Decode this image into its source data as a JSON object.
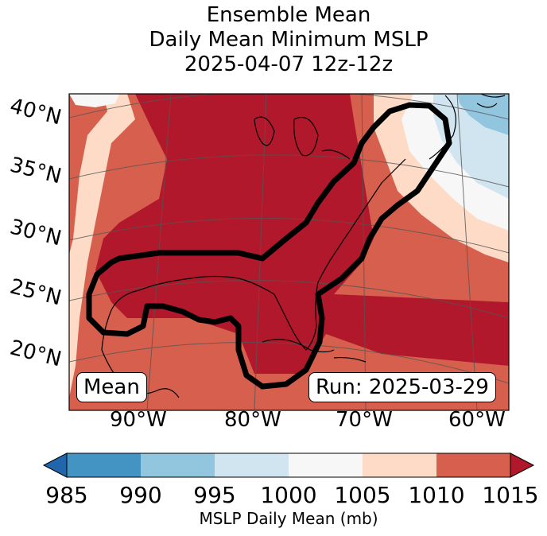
{
  "title": {
    "line1": "Ensemble Mean",
    "line2": "Daily Mean Minimum MSLP",
    "line3": "2025-04-07 12z-12z"
  },
  "map": {
    "lat_labels": [
      "40°N",
      "35°N",
      "30°N",
      "25°N",
      "20°N"
    ],
    "lon_labels": [
      "90°W",
      "80°W",
      "70°W",
      "60°W"
    ],
    "box_left": "Mean",
    "box_right": "Run: 2025-03-29",
    "contour_color": "#000000"
  },
  "colorbar": {
    "ticks": [
      "985",
      "990",
      "995",
      "1000",
      "1005",
      "1010",
      "1015"
    ],
    "label": "MSLP Daily Mean (mb)",
    "colors": {
      "below": "#2166ac",
      "985-990": "#4393c3",
      "990-995": "#92c5de",
      "995-1000": "#d1e5f0",
      "1000-1005": "#f7f7f7",
      "1005-1010": "#fddbc7",
      "1010-1015": "#d6604d",
      "above": "#b2182b"
    }
  }
}
